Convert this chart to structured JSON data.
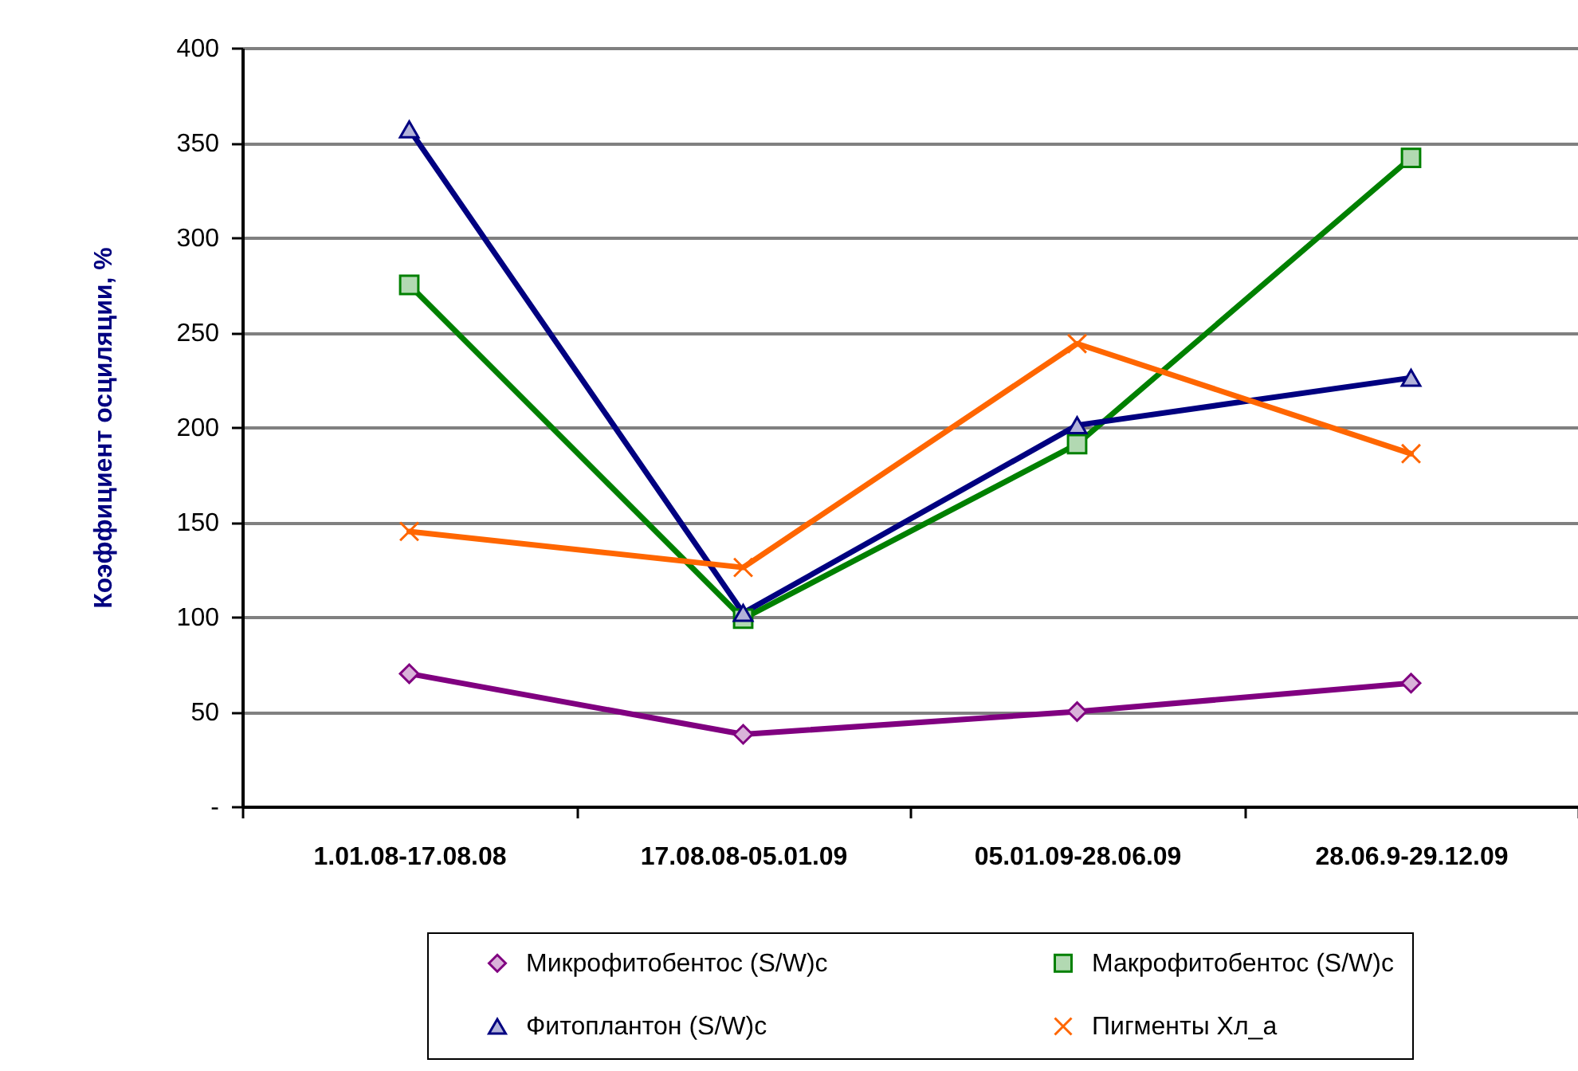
{
  "chart_data": {
    "type": "line",
    "ylabel": "Коэффициент осциляции, %",
    "categories": [
      "1.01.08-17.08.08",
      "17.08.08-05.01.09",
      "05.01.09-28.06.09",
      "28.06.9-29.12.09"
    ],
    "series": [
      {
        "name": "Микрофитобентос  (S/W)c",
        "color": "#800080",
        "marker": "diamond",
        "values": [
          70,
          38,
          50,
          65
        ]
      },
      {
        "name": "Макрофитобентос (S/W)c",
        "color": "#008000",
        "marker": "square",
        "values": [
          275,
          99,
          191,
          342
        ]
      },
      {
        "name": "Фитоплантон (S/W)c",
        "color": "#000080",
        "marker": "triangle",
        "values": [
          357,
          102,
          201,
          226
        ]
      },
      {
        "name": "Пигменты Хл_а",
        "color": "#ff6600",
        "marker": "cross",
        "values": [
          145,
          126,
          244,
          186
        ]
      }
    ],
    "ylim": [
      0,
      400
    ],
    "yticks": [
      {
        "value": 0,
        "label": "-"
      },
      50,
      100,
      150,
      200,
      250,
      300,
      350,
      400
    ],
    "grid": "y",
    "legend": "bottom",
    "line_style": "solid"
  }
}
